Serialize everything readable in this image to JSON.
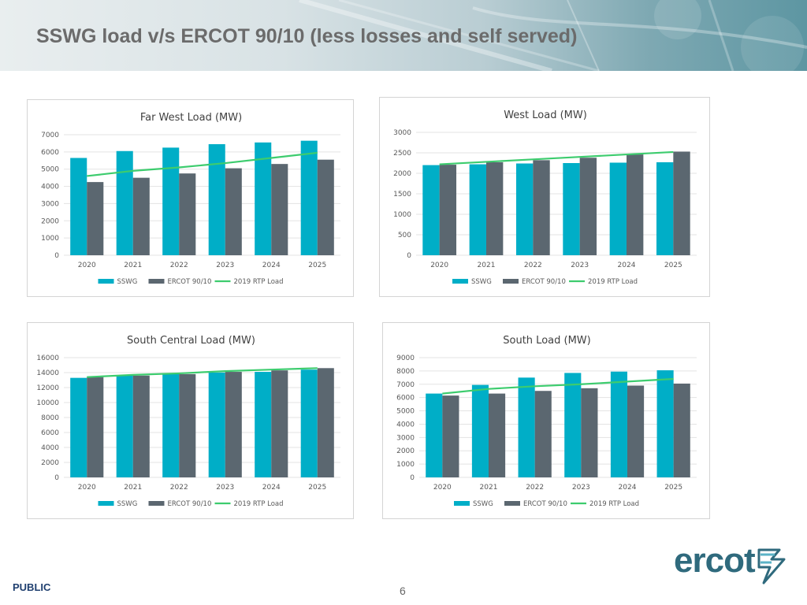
{
  "slide": {
    "title": "SSWG load v/s ERCOT 90/10 (less losses and self served)",
    "footer_label": "PUBLIC",
    "page_number": "6",
    "logo_text": "ercot"
  },
  "colors": {
    "sswg": "#00AEC7",
    "ercot": "#5B6770",
    "trend": "#3DCC6E",
    "grid": "#E3E3E3",
    "title_text": "#6b6b6b"
  },
  "legend_labels": {
    "sswg": "SSWG",
    "ercot": "ERCOT 90/10",
    "trend": "2019 RTP Load"
  },
  "chart_data": [
    {
      "type": "bar",
      "title": "Far West Load (MW)",
      "categories": [
        "2020",
        "2021",
        "2022",
        "2023",
        "2024",
        "2025"
      ],
      "ylim": [
        0,
        7000
      ],
      "yticks": [
        0,
        1000,
        2000,
        3000,
        4000,
        5000,
        6000,
        7000
      ],
      "series": [
        {
          "name": "SSWG",
          "type": "bar",
          "values": [
            5650,
            6050,
            6250,
            6450,
            6550,
            6650
          ]
        },
        {
          "name": "ERCOT 90/10",
          "type": "bar",
          "values": [
            4250,
            4500,
            4750,
            5050,
            5300,
            5550
          ]
        },
        {
          "name": "2019 RTP Load",
          "type": "line",
          "values": [
            4600,
            4900,
            5100,
            5350,
            5650,
            5950
          ]
        }
      ],
      "legend": "bottom",
      "grid": true
    },
    {
      "type": "bar",
      "title": "West Load (MW)",
      "categories": [
        "2020",
        "2021",
        "2022",
        "2023",
        "2024",
        "2025"
      ],
      "ylim": [
        0,
        3000
      ],
      "yticks": [
        0,
        500,
        1000,
        1500,
        2000,
        2500,
        3000
      ],
      "series": [
        {
          "name": "SSWG",
          "type": "bar",
          "values": [
            2200,
            2220,
            2240,
            2250,
            2260,
            2270
          ]
        },
        {
          "name": "ERCOT 90/10",
          "type": "bar",
          "values": [
            2210,
            2270,
            2320,
            2380,
            2460,
            2530
          ]
        },
        {
          "name": "2019 RTP Load",
          "type": "line",
          "values": [
            2220,
            2280,
            2340,
            2400,
            2460,
            2520
          ]
        }
      ],
      "legend": "bottom",
      "grid": true
    },
    {
      "type": "bar",
      "title": "South Central Load (MW)",
      "categories": [
        "2020",
        "2021",
        "2022",
        "2023",
        "2024",
        "2025"
      ],
      "ylim": [
        0,
        16000
      ],
      "yticks": [
        0,
        2000,
        4000,
        6000,
        8000,
        10000,
        12000,
        14000,
        16000
      ],
      "series": [
        {
          "name": "SSWG",
          "type": "bar",
          "values": [
            13300,
            13600,
            13800,
            14000,
            14100,
            14400
          ]
        },
        {
          "name": "ERCOT 90/10",
          "type": "bar",
          "values": [
            13400,
            13600,
            13800,
            14100,
            14300,
            14600
          ]
        },
        {
          "name": "2019 RTP Load",
          "type": "line",
          "values": [
            13400,
            13700,
            13900,
            14200,
            14400,
            14600
          ]
        }
      ],
      "legend": "bottom",
      "grid": true
    },
    {
      "type": "bar",
      "title": "South Load (MW)",
      "categories": [
        "2020",
        "2021",
        "2022",
        "2023",
        "2024",
        "2025"
      ],
      "ylim": [
        0,
        9000
      ],
      "yticks": [
        0,
        1000,
        2000,
        3000,
        4000,
        5000,
        6000,
        7000,
        8000,
        9000
      ],
      "series": [
        {
          "name": "SSWG",
          "type": "bar",
          "values": [
            6300,
            6950,
            7500,
            7850,
            7950,
            8050
          ]
        },
        {
          "name": "ERCOT 90/10",
          "type": "bar",
          "values": [
            6150,
            6300,
            6500,
            6700,
            6900,
            7050
          ]
        },
        {
          "name": "2019 RTP Load",
          "type": "line",
          "values": [
            6300,
            6650,
            6850,
            7000,
            7200,
            7400
          ]
        }
      ],
      "legend": "bottom",
      "grid": true
    }
  ]
}
